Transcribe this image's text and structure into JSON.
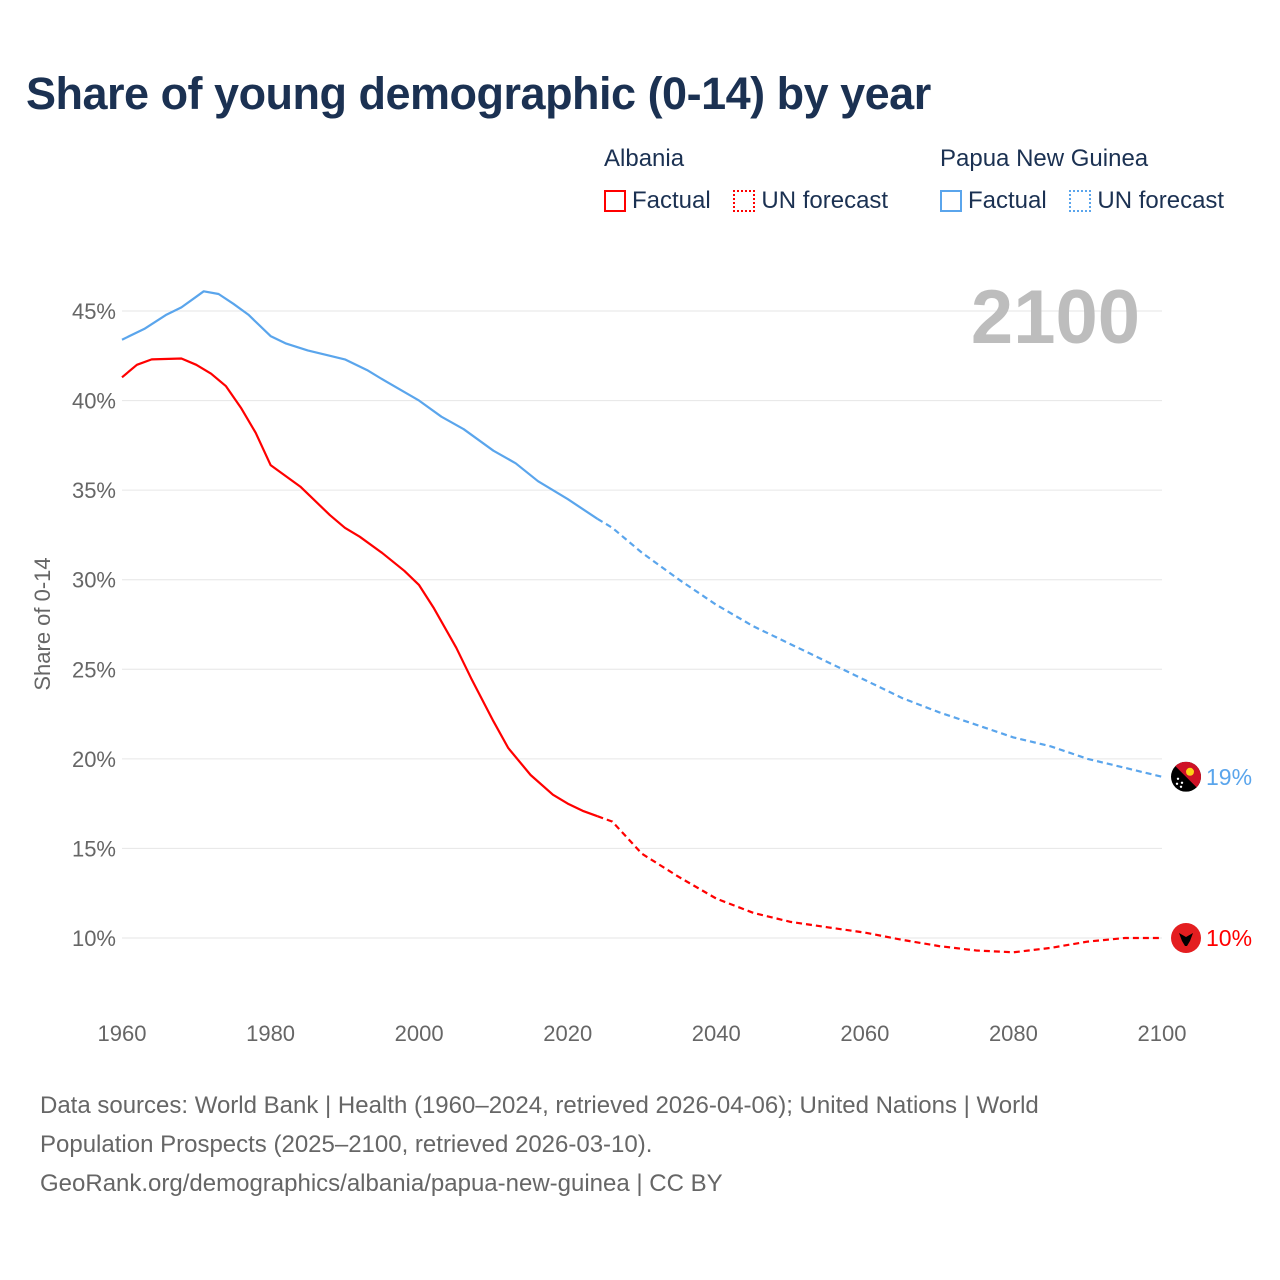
{
  "chart_data": {
    "type": "line",
    "title": "Share of young demographic (0-14) by year",
    "ylabel": "Share of 0-14",
    "xlabel": "",
    "xlim": [
      1960,
      2100
    ],
    "ylim": [
      7,
      47
    ],
    "x_ticks": [
      1960,
      1980,
      2000,
      2020,
      2040,
      2060,
      2080,
      2100
    ],
    "x_tick_labels": [
      "1960",
      "1980",
      "2000",
      "2020",
      "2040",
      "2060",
      "2080",
      "2100"
    ],
    "y_ticks": [
      10,
      15,
      20,
      25,
      30,
      35,
      40,
      45
    ],
    "y_tick_labels": [
      "10%",
      "15%",
      "20%",
      "25%",
      "30%",
      "35%",
      "40%",
      "45%"
    ],
    "grid": true,
    "year_label": "2100",
    "legend": {
      "placement": "top-right",
      "groups": [
        {
          "name": "Albania",
          "factual": "Factual",
          "forecast": "UN forecast",
          "color": "#ff0000"
        },
        {
          "name": "Papua New Guinea",
          "factual": "Factual",
          "forecast": "UN forecast",
          "color": "#5aa5ec"
        }
      ]
    },
    "series": [
      {
        "name": "Albania",
        "color": "#ff0000",
        "end_label": "10%",
        "factual": [
          [
            1960,
            41.3
          ],
          [
            1962,
            42.0
          ],
          [
            1964,
            42.3
          ],
          [
            1968,
            42.35
          ],
          [
            1970,
            42.0
          ],
          [
            1972,
            41.5
          ],
          [
            1974,
            40.8
          ],
          [
            1976,
            39.6
          ],
          [
            1978,
            38.2
          ],
          [
            1980,
            36.4
          ],
          [
            1984,
            35.2
          ],
          [
            1988,
            33.6
          ],
          [
            1990,
            32.9
          ],
          [
            1992,
            32.4
          ],
          [
            1995,
            31.5
          ],
          [
            1998,
            30.5
          ],
          [
            2000,
            29.7
          ],
          [
            2002,
            28.4
          ],
          [
            2005,
            26.2
          ],
          [
            2007,
            24.5
          ],
          [
            2010,
            22.1
          ],
          [
            2012,
            20.6
          ],
          [
            2015,
            19.1
          ],
          [
            2018,
            18.0
          ],
          [
            2020,
            17.5
          ],
          [
            2022,
            17.1
          ],
          [
            2024,
            16.8
          ]
        ],
        "forecast": [
          [
            2024,
            16.8
          ],
          [
            2026,
            16.5
          ],
          [
            2030,
            14.7
          ],
          [
            2035,
            13.4
          ],
          [
            2040,
            12.2
          ],
          [
            2045,
            11.4
          ],
          [
            2050,
            10.9
          ],
          [
            2055,
            10.6
          ],
          [
            2060,
            10.3
          ],
          [
            2065,
            9.9
          ],
          [
            2070,
            9.55
          ],
          [
            2075,
            9.3
          ],
          [
            2080,
            9.2
          ],
          [
            2085,
            9.45
          ],
          [
            2090,
            9.8
          ],
          [
            2095,
            10.0
          ],
          [
            2100,
            10.0
          ]
        ]
      },
      {
        "name": "Papua New Guinea",
        "color": "#5aa5ec",
        "end_label": "19%",
        "factual": [
          [
            1960,
            43.4
          ],
          [
            1963,
            44.0
          ],
          [
            1966,
            44.8
          ],
          [
            1968,
            45.2
          ],
          [
            1970,
            45.8
          ],
          [
            1971,
            46.1
          ],
          [
            1973,
            45.95
          ],
          [
            1975,
            45.4
          ],
          [
            1977,
            44.8
          ],
          [
            1980,
            43.6
          ],
          [
            1982,
            43.2
          ],
          [
            1985,
            42.8
          ],
          [
            1988,
            42.5
          ],
          [
            1990,
            42.3
          ],
          [
            1993,
            41.7
          ],
          [
            1995,
            41.2
          ],
          [
            2000,
            40.0
          ],
          [
            2003,
            39.1
          ],
          [
            2006,
            38.4
          ],
          [
            2010,
            37.2
          ],
          [
            2013,
            36.5
          ],
          [
            2016,
            35.5
          ],
          [
            2020,
            34.5
          ],
          [
            2024,
            33.4
          ]
        ],
        "forecast": [
          [
            2024,
            33.4
          ],
          [
            2026,
            32.9
          ],
          [
            2030,
            31.5
          ],
          [
            2035,
            30.0
          ],
          [
            2040,
            28.6
          ],
          [
            2045,
            27.4
          ],
          [
            2050,
            26.4
          ],
          [
            2055,
            25.4
          ],
          [
            2060,
            24.4
          ],
          [
            2065,
            23.4
          ],
          [
            2070,
            22.6
          ],
          [
            2075,
            21.9
          ],
          [
            2080,
            21.2
          ],
          [
            2085,
            20.7
          ],
          [
            2090,
            20.0
          ],
          [
            2095,
            19.5
          ],
          [
            2100,
            19.0
          ]
        ]
      }
    ]
  },
  "footer": {
    "line1": "Data sources: World Bank | Health (1960–2024, retrieved 2026-04-06); United Nations | World",
    "line2": "Population Prospects (2025–2100, retrieved 2026-03-10).",
    "line3": "GeoRank.org/demographics/albania/papua-new-guinea | CC BY"
  }
}
